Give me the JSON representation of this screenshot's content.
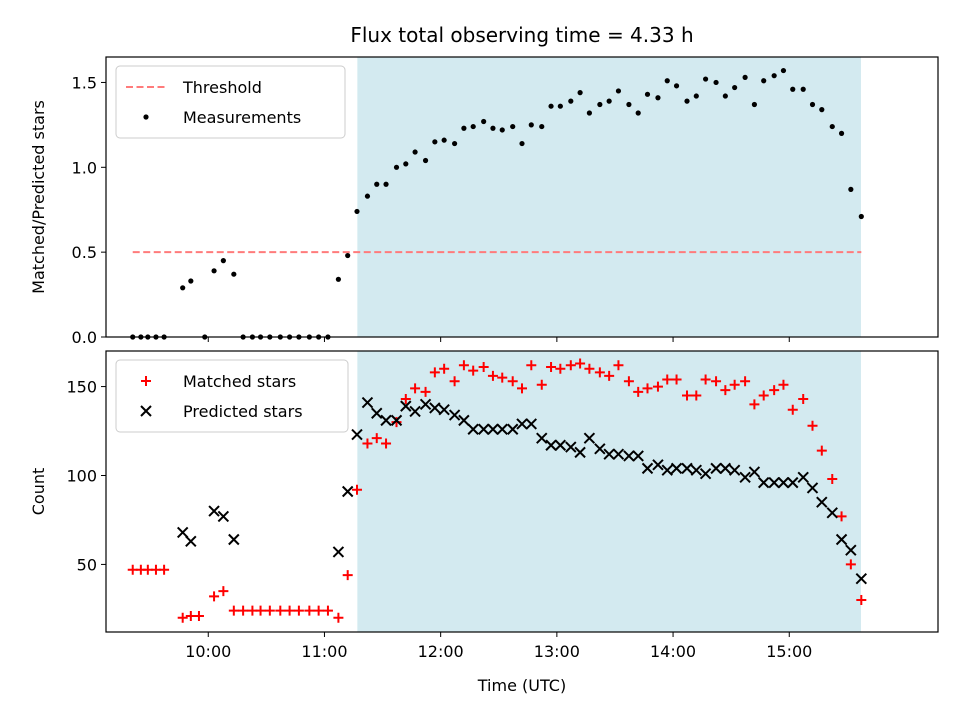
{
  "title": "Flux total observing time = 4.33 h",
  "xlabel": "Time (UTC)",
  "x_tick_labels": [
    "10:00",
    "11:00",
    "12:00",
    "13:00",
    "14:00",
    "15:00"
  ],
  "x_ticks_hours": [
    10,
    11,
    12,
    13,
    14,
    15
  ],
  "xlim_hours": [
    9.12,
    16.28
  ],
  "shaded_interval_hours": [
    11.283,
    15.617
  ],
  "colors": {
    "shade": "#d3eaf0",
    "threshold": "#ff7b7b",
    "measurements": "#000000",
    "matched": "#ff0000",
    "predicted": "#000000"
  },
  "chart_data": [
    {
      "type": "scatter",
      "ylabel": "Matched/Predicted stars",
      "ylim": [
        0,
        1.65
      ],
      "y_ticks": [
        0.0,
        0.5,
        1.0,
        1.5
      ],
      "y_tick_labels": [
        "0.0",
        "0.5",
        "1.0",
        "1.5"
      ],
      "legend": "top-left",
      "threshold": {
        "name": "Threshold",
        "y": 0.5,
        "x_range": [
          9.35,
          15.62
        ]
      },
      "series": [
        {
          "name": "Measurements",
          "marker": "dot",
          "x": [
            9.35,
            9.42,
            9.48,
            9.55,
            9.62,
            9.78,
            9.85,
            9.97,
            10.05,
            10.13,
            10.22,
            10.3,
            10.38,
            10.45,
            10.53,
            10.62,
            10.7,
            10.78,
            10.87,
            10.95,
            11.03,
            11.12,
            11.2,
            11.28,
            11.37,
            11.45,
            11.53,
            11.62,
            11.7,
            11.78,
            11.87,
            11.95,
            12.03,
            12.12,
            12.2,
            12.28,
            12.37,
            12.45,
            12.53,
            12.62,
            12.7,
            12.78,
            12.87,
            12.95,
            13.03,
            13.12,
            13.2,
            13.28,
            13.37,
            13.45,
            13.53,
            13.62,
            13.7,
            13.78,
            13.87,
            13.95,
            14.03,
            14.12,
            14.2,
            14.28,
            14.37,
            14.45,
            14.53,
            14.62,
            14.7,
            14.78,
            14.87,
            14.95,
            15.03,
            15.12,
            15.2,
            15.28,
            15.37,
            15.45,
            15.53,
            15.62
          ],
          "values": [
            0,
            0,
            0,
            0,
            0,
            0.29,
            0.33,
            0,
            0.39,
            0.45,
            0.37,
            0,
            0,
            0,
            0,
            0,
            0,
            0,
            0,
            0,
            0,
            0.34,
            0.48,
            0.74,
            0.83,
            0.9,
            0.9,
            1.0,
            1.02,
            1.09,
            1.04,
            1.15,
            1.16,
            1.14,
            1.23,
            1.24,
            1.27,
            1.23,
            1.22,
            1.24,
            1.14,
            1.25,
            1.24,
            1.36,
            1.36,
            1.39,
            1.44,
            1.32,
            1.37,
            1.39,
            1.45,
            1.37,
            1.32,
            1.43,
            1.41,
            1.51,
            1.48,
            1.39,
            1.42,
            1.52,
            1.5,
            1.42,
            1.47,
            1.53,
            1.37,
            1.51,
            1.54,
            1.57,
            1.46,
            1.46,
            1.37,
            1.34,
            1.24,
            1.2,
            0.87,
            0.71
          ]
        }
      ]
    },
    {
      "type": "scatter",
      "ylabel": "Count",
      "ylim": [
        12,
        170
      ],
      "y_ticks": [
        50,
        100,
        150
      ],
      "y_tick_labels": [
        "50",
        "100",
        "150"
      ],
      "legend": "top-left",
      "series": [
        {
          "name": "Matched stars",
          "marker": "plus",
          "x": [
            9.35,
            9.42,
            9.48,
            9.55,
            9.62,
            9.78,
            9.85,
            9.92,
            10.05,
            10.13,
            10.22,
            10.3,
            10.38,
            10.45,
            10.53,
            10.62,
            10.7,
            10.78,
            10.87,
            10.95,
            11.03,
            11.12,
            11.2,
            11.28,
            11.37,
            11.45,
            11.53,
            11.62,
            11.7,
            11.78,
            11.87,
            11.95,
            12.03,
            12.12,
            12.2,
            12.28,
            12.37,
            12.45,
            12.53,
            12.62,
            12.7,
            12.78,
            12.87,
            12.95,
            13.03,
            13.12,
            13.2,
            13.28,
            13.37,
            13.45,
            13.53,
            13.62,
            13.7,
            13.78,
            13.87,
            13.95,
            14.03,
            14.12,
            14.2,
            14.28,
            14.37,
            14.45,
            14.53,
            14.62,
            14.7,
            14.78,
            14.87,
            14.95,
            15.03,
            15.12,
            15.2,
            15.28,
            15.37,
            15.45,
            15.53,
            15.62
          ],
          "values": [
            47,
            47,
            47,
            47,
            47,
            20,
            21,
            21,
            32,
            35,
            24,
            24,
            24,
            24,
            24,
            24,
            24,
            24,
            24,
            24,
            24,
            20,
            44,
            92,
            118,
            121,
            118,
            130,
            143,
            149,
            147,
            158,
            160,
            153,
            162,
            159,
            161,
            156,
            155,
            153,
            149,
            162,
            151,
            161,
            160,
            162,
            163,
            160,
            158,
            156,
            162,
            153,
            147,
            149,
            150,
            154,
            154,
            145,
            145,
            154,
            153,
            148,
            151,
            153,
            140,
            145,
            148,
            151,
            137,
            143,
            128,
            114,
            98,
            77,
            50,
            30
          ]
        },
        {
          "name": "Predicted stars",
          "marker": "x",
          "x": [
            9.78,
            9.85,
            10.05,
            10.13,
            10.22,
            11.12,
            11.2,
            11.28,
            11.37,
            11.45,
            11.53,
            11.62,
            11.7,
            11.78,
            11.87,
            11.95,
            12.03,
            12.12,
            12.2,
            12.28,
            12.37,
            12.45,
            12.53,
            12.62,
            12.7,
            12.78,
            12.87,
            12.95,
            13.03,
            13.12,
            13.2,
            13.28,
            13.37,
            13.45,
            13.53,
            13.62,
            13.7,
            13.78,
            13.87,
            13.95,
            14.03,
            14.12,
            14.2,
            14.28,
            14.37,
            14.45,
            14.53,
            14.62,
            14.7,
            14.78,
            14.87,
            14.95,
            15.03,
            15.12,
            15.2,
            15.28,
            15.37,
            15.45,
            15.53,
            15.62
          ],
          "values": [
            68,
            63,
            80,
            77,
            64,
            57,
            91,
            123,
            141,
            135,
            131,
            131,
            139,
            136,
            140,
            138,
            137,
            134,
            131,
            126,
            126,
            126,
            126,
            126,
            129,
            129,
            121,
            117,
            117,
            116,
            113,
            121,
            115,
            112,
            112,
            111,
            111,
            104,
            106,
            103,
            104,
            104,
            103,
            101,
            104,
            104,
            103,
            99,
            102,
            96,
            96,
            96,
            96,
            99,
            93,
            85,
            79,
            64,
            58,
            42
          ]
        }
      ]
    }
  ]
}
